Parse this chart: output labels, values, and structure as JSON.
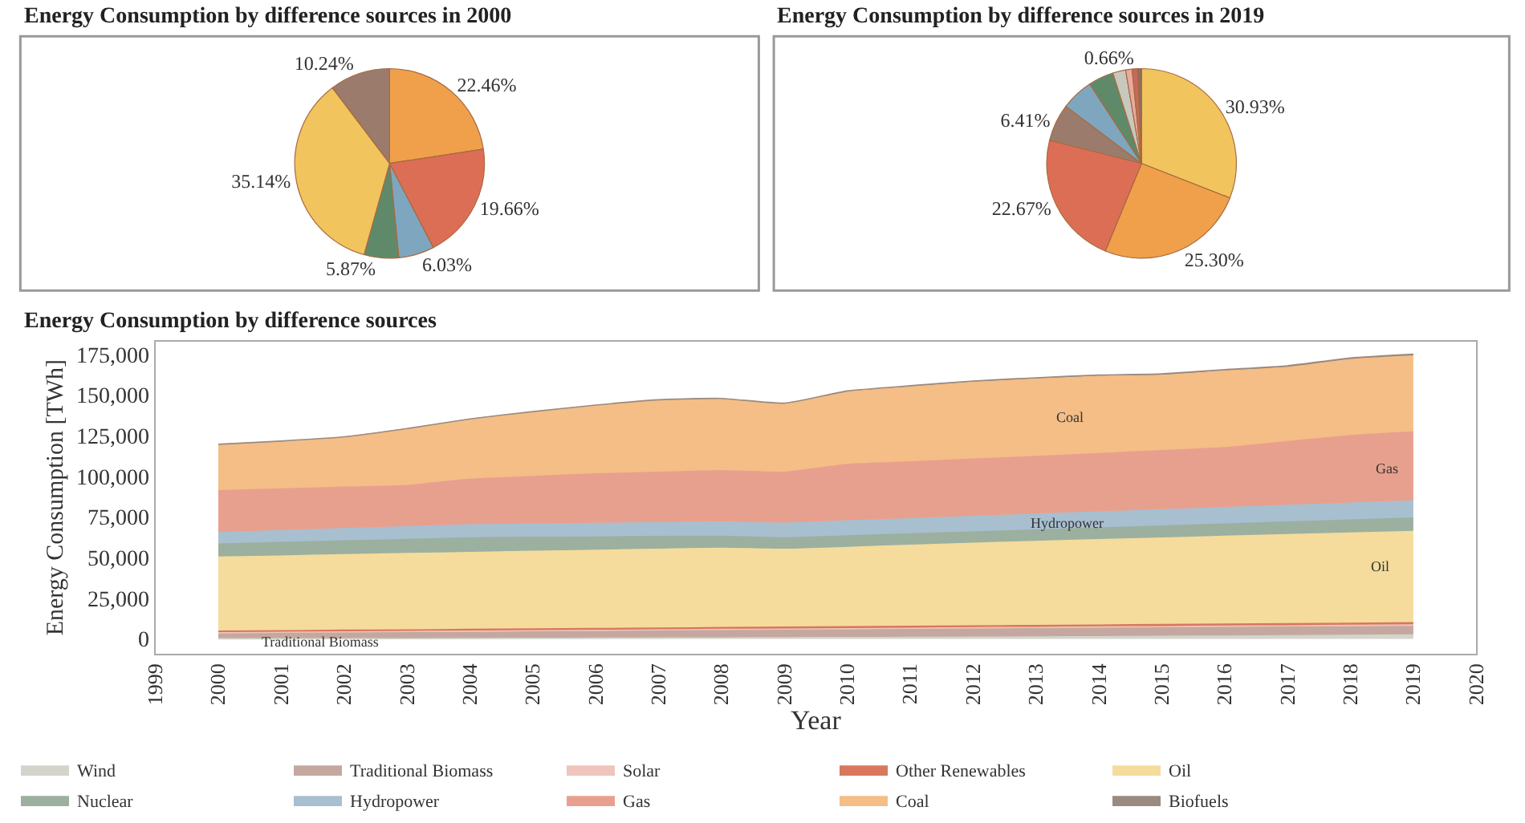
{
  "chart_data": [
    {
      "type": "pie",
      "title": "Energy Consumption by difference sources in 2000",
      "categories": [
        null,
        null,
        null,
        null,
        null,
        null
      ],
      "values": [
        22.46,
        19.66,
        6.03,
        5.87,
        35.14,
        10.24
      ],
      "value_labels": [
        "22.46%",
        "19.66%",
        "6.03%",
        "5.87%",
        "35.14%",
        "10.24%"
      ],
      "colors": [
        "#f0a04b",
        "#dd6e56",
        "#7fa6bf",
        "#5f8a6a",
        "#f1c45e",
        "#9b7b6b"
      ]
    },
    {
      "type": "pie",
      "title": "Energy Consumption by difference sources in 2019",
      "categories": [
        null,
        null,
        null,
        null,
        null,
        null,
        null,
        null,
        null,
        null
      ],
      "values": [
        30.93,
        25.3,
        22.67,
        6.41,
        5.5,
        4.3,
        2.2,
        1.1,
        0.93,
        0.66
      ],
      "value_labels": [
        "30.93%",
        "25.30%",
        "22.67%",
        "6.41%",
        null,
        null,
        null,
        null,
        null,
        "0.66%"
      ],
      "colors": [
        "#f1c45e",
        "#f0a04b",
        "#dd6e56",
        "#9b7b6b",
        "#7fa6bf",
        "#5f8a6a",
        "#c8c8bd",
        "#e8aaa0",
        "#c86a5a",
        "#8a6f64"
      ]
    },
    {
      "type": "area",
      "title": "Energy Consumption by difference sources",
      "xlabel": "Year",
      "ylabel": "Energy Consumption [TWh]",
      "stacked": true,
      "legend": "bottom",
      "x": [
        2000,
        2001,
        2002,
        2003,
        2004,
        2005,
        2006,
        2007,
        2008,
        2009,
        2010,
        2011,
        2012,
        2013,
        2014,
        2015,
        2016,
        2017,
        2018,
        2019
      ],
      "xlim": [
        1999,
        2020
      ],
      "xticks": [
        1999,
        2000,
        2001,
        2002,
        2003,
        2004,
        2005,
        2006,
        2007,
        2008,
        2009,
        2010,
        2011,
        2012,
        2013,
        2014,
        2015,
        2016,
        2017,
        2018,
        2019,
        2020
      ],
      "ylim": [
        -9000,
        183000
      ],
      "yticks": [
        0,
        {
          "value": 25000,
          "label": "25,000"
        },
        {
          "value": 50000,
          "label": "50,000"
        },
        {
          "value": 75000,
          "label": "75,000"
        },
        {
          "value": 100000,
          "label": "100,000"
        },
        {
          "value": 125000,
          "label": "125,000"
        },
        {
          "value": 150000,
          "label": "150,000"
        },
        {
          "value": 175000,
          "label": "175,000"
        }
      ],
      "series": [
        {
          "name": "Wind",
          "color": "#d4d4cc",
          "values": [
            100,
            100,
            200,
            200,
            300,
            400,
            500,
            600,
            700,
            800,
            900,
            1000,
            1100,
            1300,
            1400,
            1600,
            1800,
            2000,
            2200,
            2500
          ]
        },
        {
          "name": "Traditional Biomass",
          "color": "#c4a8a0",
          "values": [
            3700,
            4000,
            4200,
            4400,
            4500,
            4700,
            4800,
            5000,
            5100,
            5200,
            5300,
            5400,
            5500,
            5500,
            5600,
            5500,
            5500,
            5400,
            5400,
            5200
          ]
        },
        {
          "name": "Solar",
          "color": "#efc4bc",
          "values": [
            0,
            0,
            0,
            0,
            0,
            0,
            0,
            0,
            100,
            100,
            100,
            200,
            300,
            300,
            400,
            500,
            600,
            700,
            800,
            1000
          ]
        },
        {
          "name": "Other Renewables",
          "color": "#d9775e",
          "values": [
            1000,
            1000,
            1000,
            1000,
            1100,
            1100,
            1100,
            1100,
            1100,
            1200,
            1200,
            1200,
            1200,
            1200,
            1200,
            1300,
            1300,
            1300,
            1300,
            1300
          ]
        },
        {
          "name": "Oil",
          "color": "#f5dc9c",
          "values": [
            45500,
            45900,
            46400,
            46900,
            47300,
            47700,
            48100,
            48500,
            48800,
            47800,
            48800,
            49800,
            50700,
            51700,
            52400,
            53100,
            53900,
            54700,
            55400,
            56100
          ]
        },
        {
          "name": "Nuclear",
          "color": "#9bb09f",
          "values": [
            8000,
            8300,
            8500,
            8700,
            9000,
            8600,
            8200,
            7800,
            7400,
            7100,
            7100,
            7000,
            7000,
            7000,
            7200,
            7500,
            7600,
            7800,
            8100,
            8300
          ]
        },
        {
          "name": "Hydropower",
          "color": "#a8bfd0",
          "values": [
            7100,
            7300,
            7500,
            7800,
            8000,
            8100,
            8400,
            8500,
            8700,
            9000,
            9200,
            9300,
            9500,
            9700,
            9900,
            9900,
            10100,
            10200,
            10300,
            10400
          ]
        },
        {
          "name": "Gas",
          "color": "#e8a08e",
          "values": [
            25800,
            25700,
            25500,
            25400,
            28100,
            29300,
            30400,
            31000,
            31600,
            31300,
            34700,
            35000,
            35300,
            35500,
            35900,
            36400,
            36800,
            39300,
            41600,
            42500
          ]
        },
        {
          "name": "Coal",
          "color": "#f4be86",
          "values": [
            28400,
            29200,
            30800,
            34800,
            36700,
            39600,
            41900,
            44100,
            43800,
            41900,
            44500,
            46100,
            47300,
            47600,
            47500,
            46300,
            47100,
            45600,
            46700,
            46700
          ]
        },
        {
          "name": "Biofuels",
          "color": "#9a8a80",
          "values": [
            100,
            200,
            200,
            200,
            300,
            300,
            400,
            500,
            600,
            600,
            700,
            700,
            700,
            800,
            800,
            900,
            900,
            1000,
            1000,
            1100
          ]
        }
      ],
      "annotations": [
        "Coal",
        "Gas",
        {
          "text": "Hydropower",
          "x": 2013.5,
          "y": 71000
        },
        "Oil",
        {
          "text": "Traditional Biomass",
          "x": 2000.65,
          "y": -2000
        }
      ]
    }
  ]
}
